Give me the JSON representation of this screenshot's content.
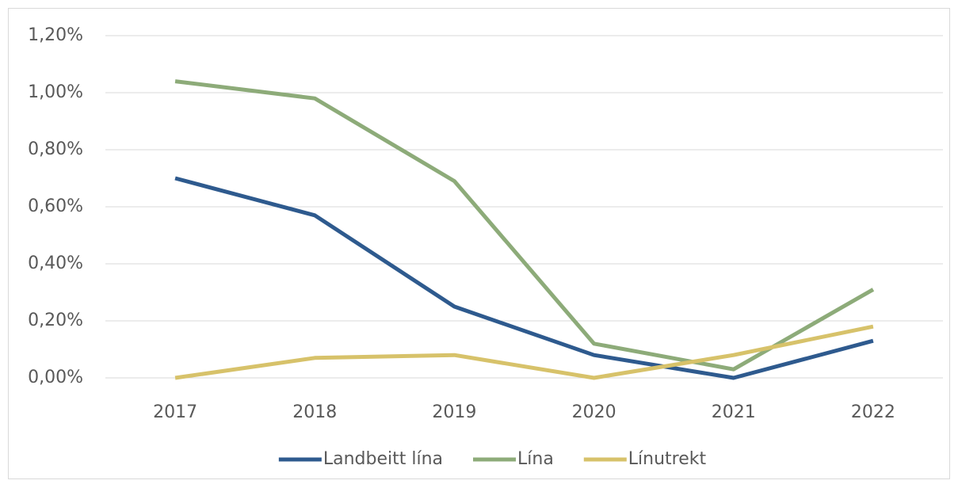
{
  "chart_data": {
    "type": "line",
    "categories": [
      "2017",
      "2018",
      "2019",
      "2020",
      "2021",
      "2022"
    ],
    "series": [
      {
        "name": "Landbeitt lína",
        "color": "#2e5a8e",
        "values": [
          0.7,
          0.57,
          0.25,
          0.08,
          0.0,
          0.13
        ]
      },
      {
        "name": "Lína",
        "color": "#8dab79",
        "values": [
          1.04,
          0.98,
          0.69,
          0.12,
          0.03,
          0.31
        ]
      },
      {
        "name": "Línutrekt",
        "color": "#d7c26a",
        "values": [
          0.0,
          0.07,
          0.08,
          0.0,
          0.08,
          0.18
        ]
      }
    ],
    "ylim": [
      0,
      1.2
    ],
    "yticks": [
      {
        "value": 0,
        "label": "0,00%"
      },
      {
        "value": 0.2,
        "label": "0,20%"
      },
      {
        "value": 0.4,
        "label": "0,40%"
      },
      {
        "value": 0.6,
        "label": "0,60%"
      },
      {
        "value": 0.8,
        "label": "0,80%"
      },
      {
        "value": 1.0,
        "label": "1,00%"
      },
      {
        "value": 1.2,
        "label": "1,20%"
      }
    ],
    "grid": true,
    "legend": "bottom"
  }
}
